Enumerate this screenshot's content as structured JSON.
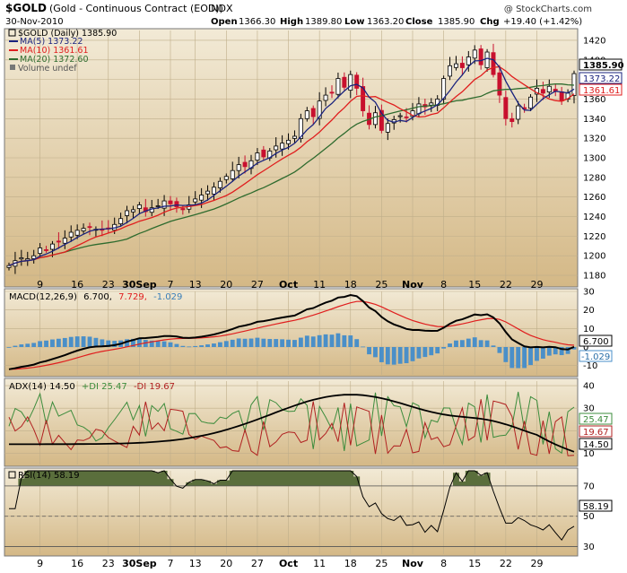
{
  "header": {
    "symbol": "$GOLD",
    "description": "(Gold - Continuous Contract (EOD))",
    "exchange": "INDX",
    "date": "30-Nov-2010",
    "watermark": "@ StockCharts.com",
    "open_label": "Open",
    "open": "1366.30",
    "high_label": "High",
    "high": "1389.80",
    "low_label": "Low",
    "low": "1363.20",
    "close_label": "Close",
    "close": "1385.90",
    "chg_label": "Chg",
    "chg": "+19.40 (+1.42%)"
  },
  "legend": {
    "price": "$GOLD (Daily) 1385.90",
    "ma5": "MA(5) 1373.22",
    "ma10": "MA(10) 1361.61",
    "ma20": "MA(20) 1372.60",
    "volume": "Volume undef"
  },
  "badges": {
    "price_close": "1385.90",
    "price_ma5": "1373.22",
    "price_ma10": "1361.61",
    "macd": "6.700",
    "macd_hist": "-1.029",
    "adx_pdi": "25.47",
    "adx_mdi": "19.67",
    "adx": "14.50",
    "rsi": "58.19"
  },
  "macd_legend": {
    "label": "MACD(12,26,9)",
    "macd": "6.700,",
    "signal": "7.729,",
    "hist": "-1.029"
  },
  "adx_legend": {
    "label": "ADX(14) 14.50",
    "pdi": "+DI 25.47",
    "mdi": "-DI 19.67"
  },
  "rsi_legend": {
    "label": "RSI(14) 58.19"
  },
  "colors": {
    "background": "#e9dcb8",
    "panel_bg_top": "#f2ead3",
    "panel_bg_bottom": "#d8be8a",
    "up": "#000000",
    "down": "#c8102e",
    "ma5": "#1a237e",
    "ma10": "#e01e1e",
    "ma20": "#2e6b2e",
    "macd_signal": "#e01e1e",
    "macd_hist": "#4a8fc8",
    "pdi": "#3c8c3c",
    "mdi": "#b02020",
    "rsi_fill": "#5a6e3c"
  },
  "chart_data": [
    {
      "type": "candlestick",
      "title": "$GOLD (Gold - Continuous Contract (EOD))",
      "ylim": [
        1170,
        1430
      ],
      "yticks": [
        1180,
        1200,
        1220,
        1240,
        1260,
        1280,
        1300,
        1320,
        1340,
        1360,
        1380,
        1400,
        1420
      ],
      "x_tick_labels": [
        "9",
        "16",
        "23",
        "30Sep",
        "7",
        "13",
        "20",
        "27",
        "Oct",
        "11",
        "18",
        "25",
        "Nov",
        "8",
        "15",
        "22",
        "29"
      ],
      "close": [
        1190,
        1195,
        1198,
        1197,
        1200,
        1208,
        1206,
        1212,
        1214,
        1218,
        1224,
        1226,
        1228,
        1229,
        1227,
        1226,
        1228,
        1232,
        1238,
        1246,
        1247,
        1252,
        1245,
        1249,
        1251,
        1256,
        1253,
        1250,
        1247,
        1252,
        1258,
        1262,
        1266,
        1270,
        1276,
        1281,
        1287,
        1293,
        1291,
        1297,
        1305,
        1301,
        1307,
        1312,
        1315,
        1318,
        1322,
        1340,
        1348,
        1342,
        1358,
        1364,
        1366,
        1381,
        1372,
        1385,
        1371,
        1348,
        1334,
        1346,
        1328,
        1335,
        1339,
        1343,
        1341,
        1348,
        1355,
        1352,
        1356,
        1360,
        1381,
        1394,
        1396,
        1392,
        1403,
        1410,
        1395,
        1408,
        1385,
        1364,
        1340,
        1337,
        1353,
        1350,
        1362,
        1371,
        1366,
        1373,
        1368,
        1358,
        1366,
        1386
      ],
      "series": [
        {
          "name": "MA(5)",
          "last": 1373.22
        },
        {
          "name": "MA(10)",
          "last": 1361.61
        },
        {
          "name": "MA(20)",
          "last": 1372.6
        }
      ],
      "volume": "undef"
    },
    {
      "type": "line",
      "title": "MACD(12,26,9)",
      "ylim": [
        -15,
        30
      ],
      "yticks": [
        -10,
        0,
        10,
        20,
        30
      ],
      "series": [
        {
          "name": "MACD",
          "last": 6.7
        },
        {
          "name": "Signal",
          "last": 7.729
        },
        {
          "name": "Histogram",
          "last": -1.029
        }
      ]
    },
    {
      "type": "line",
      "title": "ADX(14)",
      "ylim": [
        5,
        42
      ],
      "yticks": [
        10,
        20,
        30,
        40
      ],
      "series": [
        {
          "name": "ADX",
          "last": 14.5
        },
        {
          "name": "+DI",
          "last": 25.47
        },
        {
          "name": "-DI",
          "last": 19.67
        }
      ]
    },
    {
      "type": "area",
      "title": "RSI(14)",
      "ylim": [
        25,
        80
      ],
      "yticks": [
        30,
        50,
        70
      ],
      "series": [
        {
          "name": "RSI",
          "last": 58.19
        }
      ]
    }
  ]
}
